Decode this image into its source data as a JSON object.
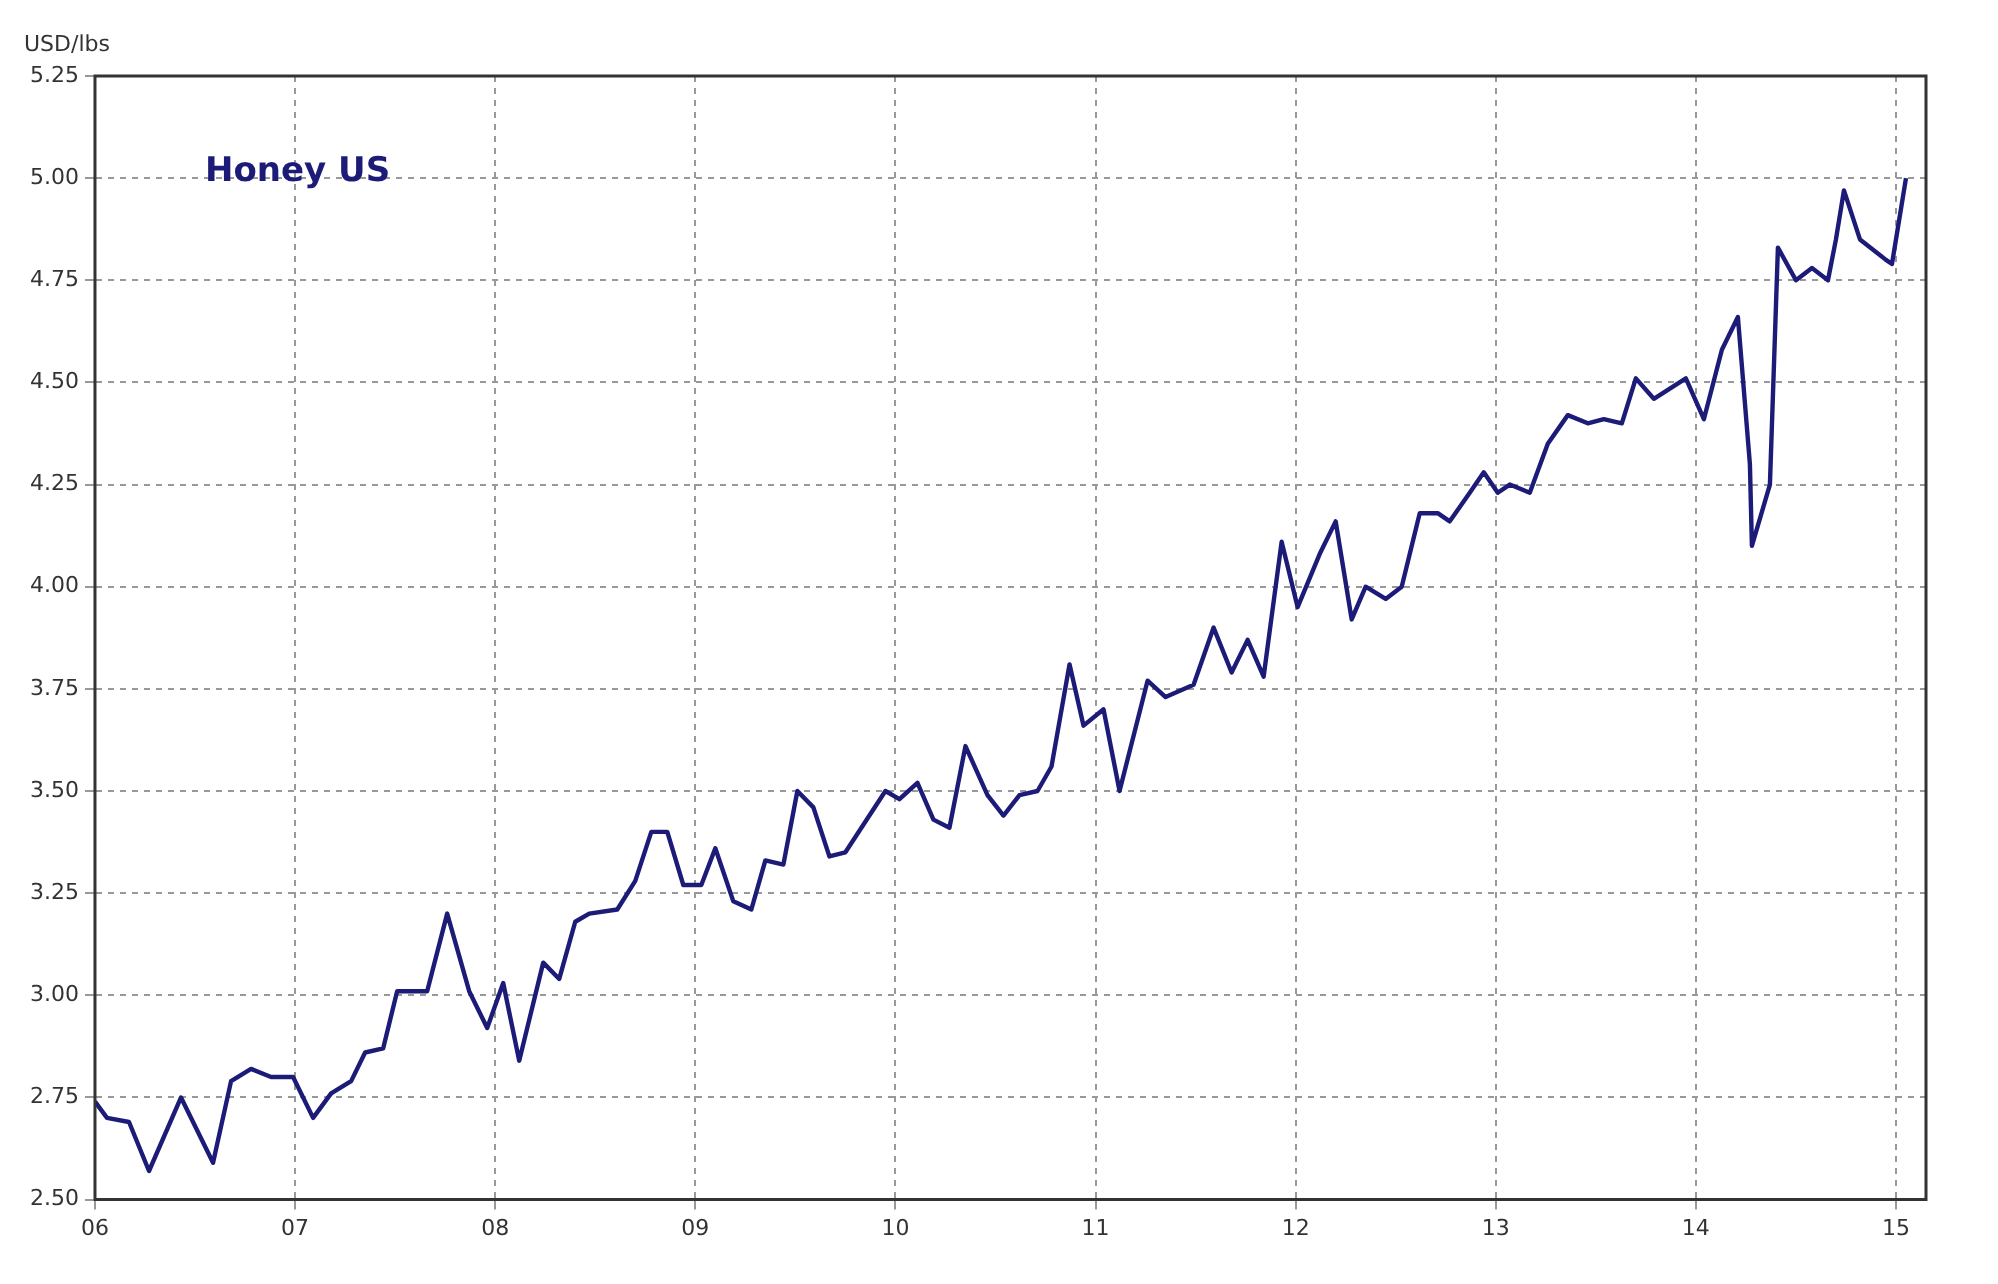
{
  "chart_data": {
    "type": "line",
    "ylabel": "USD/lbs",
    "x": [
      2006.0,
      2006.06,
      2006.17,
      2006.27,
      2006.43,
      2006.59,
      2006.68,
      2006.78,
      2006.88,
      2006.99,
      2007.09,
      2007.18,
      2007.28,
      2007.35,
      2007.44,
      2007.51,
      2007.66,
      2007.76,
      2007.87,
      2007.96,
      2008.04,
      2008.12,
      2008.24,
      2008.32,
      2008.4,
      2008.47,
      2008.61,
      2008.7,
      2008.78,
      2008.86,
      2008.94,
      2009.03,
      2009.1,
      2009.19,
      2009.28,
      2009.35,
      2009.44,
      2009.51,
      2009.59,
      2009.67,
      2009.75,
      2009.95,
      2010.02,
      2010.11,
      2010.19,
      2010.27,
      2010.35,
      2010.46,
      2010.54,
      2010.62,
      2010.71,
      2010.78,
      2010.87,
      2010.94,
      2011.04,
      2011.12,
      2011.26,
      2011.35,
      2011.49,
      2011.59,
      2011.68,
      2011.76,
      2011.84,
      2011.93,
      2012.01,
      2012.12,
      2012.2,
      2012.28,
      2012.35,
      2012.45,
      2012.53,
      2012.62,
      2012.71,
      2012.77,
      2012.87,
      2012.94,
      2013.01,
      2013.07,
      2013.17,
      2013.26,
      2013.36,
      2013.46,
      2013.54,
      2013.63,
      2013.7,
      2013.79,
      2013.95,
      2014.04,
      2014.13,
      2014.21,
      2014.27,
      2014.28,
      2014.37,
      2014.41,
      2014.5,
      2014.58,
      2014.66,
      2014.7,
      2014.74,
      2014.82,
      2014.95,
      2014.98,
      2015.05
    ],
    "series": [
      {
        "name": "Honey US",
        "color": "#1c1c78",
        "values": [
          2.74,
          2.7,
          2.69,
          2.57,
          2.75,
          2.59,
          2.79,
          2.82,
          2.8,
          2.8,
          2.7,
          2.76,
          2.79,
          2.86,
          2.87,
          3.01,
          3.01,
          3.2,
          3.01,
          2.92,
          3.03,
          2.84,
          3.08,
          3.04,
          3.18,
          3.2,
          3.21,
          3.28,
          3.4,
          3.4,
          3.27,
          3.27,
          3.36,
          3.23,
          3.21,
          3.33,
          3.32,
          3.5,
          3.46,
          3.34,
          3.35,
          3.5,
          3.48,
          3.52,
          3.43,
          3.41,
          3.61,
          3.49,
          3.44,
          3.49,
          3.5,
          3.56,
          3.81,
          3.66,
          3.7,
          3.5,
          3.77,
          3.73,
          3.76,
          3.9,
          3.79,
          3.87,
          3.78,
          4.11,
          3.95,
          4.08,
          4.16,
          3.92,
          4.0,
          3.97,
          4.0,
          4.18,
          4.18,
          4.16,
          4.23,
          4.28,
          4.23,
          4.25,
          4.23,
          4.35,
          4.42,
          4.4,
          4.41,
          4.4,
          4.51,
          4.46,
          4.51,
          4.41,
          4.58,
          4.66,
          4.3,
          4.1,
          4.25,
          4.83,
          4.75,
          4.78,
          4.75,
          4.85,
          4.97,
          4.85,
          4.8,
          4.79,
          5.0
        ]
      }
    ],
    "xlim": [
      2006,
      2015.15
    ],
    "xticks": [
      {
        "value": 2006,
        "label": "06"
      },
      {
        "value": 2007,
        "label": "07"
      },
      {
        "value": 2008,
        "label": "08"
      },
      {
        "value": 2009,
        "label": "09"
      },
      {
        "value": 2010,
        "label": "10"
      },
      {
        "value": 2011,
        "label": "11"
      },
      {
        "value": 2012,
        "label": "12"
      },
      {
        "value": 2013,
        "label": "13"
      },
      {
        "value": 2014,
        "label": "14"
      },
      {
        "value": 2015,
        "label": "15"
      }
    ],
    "ylim": [
      2.5,
      5.25
    ],
    "yticks": [
      {
        "value": 2.5,
        "label": "2.50"
      },
      {
        "value": 2.75,
        "label": "2.75"
      },
      {
        "value": 3,
        "label": "3.00"
      },
      {
        "value": 3.25,
        "label": "3.25"
      },
      {
        "value": 3.5,
        "label": "3.50"
      },
      {
        "value": 3.75,
        "label": "3.75"
      },
      {
        "value": 4,
        "label": "4.00"
      },
      {
        "value": 4.25,
        "label": "4.25"
      },
      {
        "value": 4.5,
        "label": "4.50"
      },
      {
        "value": 4.75,
        "label": "4.75"
      },
      {
        "value": 5,
        "label": "5.00"
      },
      {
        "value": 5.25,
        "label": "5.25"
      }
    ],
    "grid": true,
    "legend": false,
    "marker": "none",
    "line_style": "solid"
  }
}
